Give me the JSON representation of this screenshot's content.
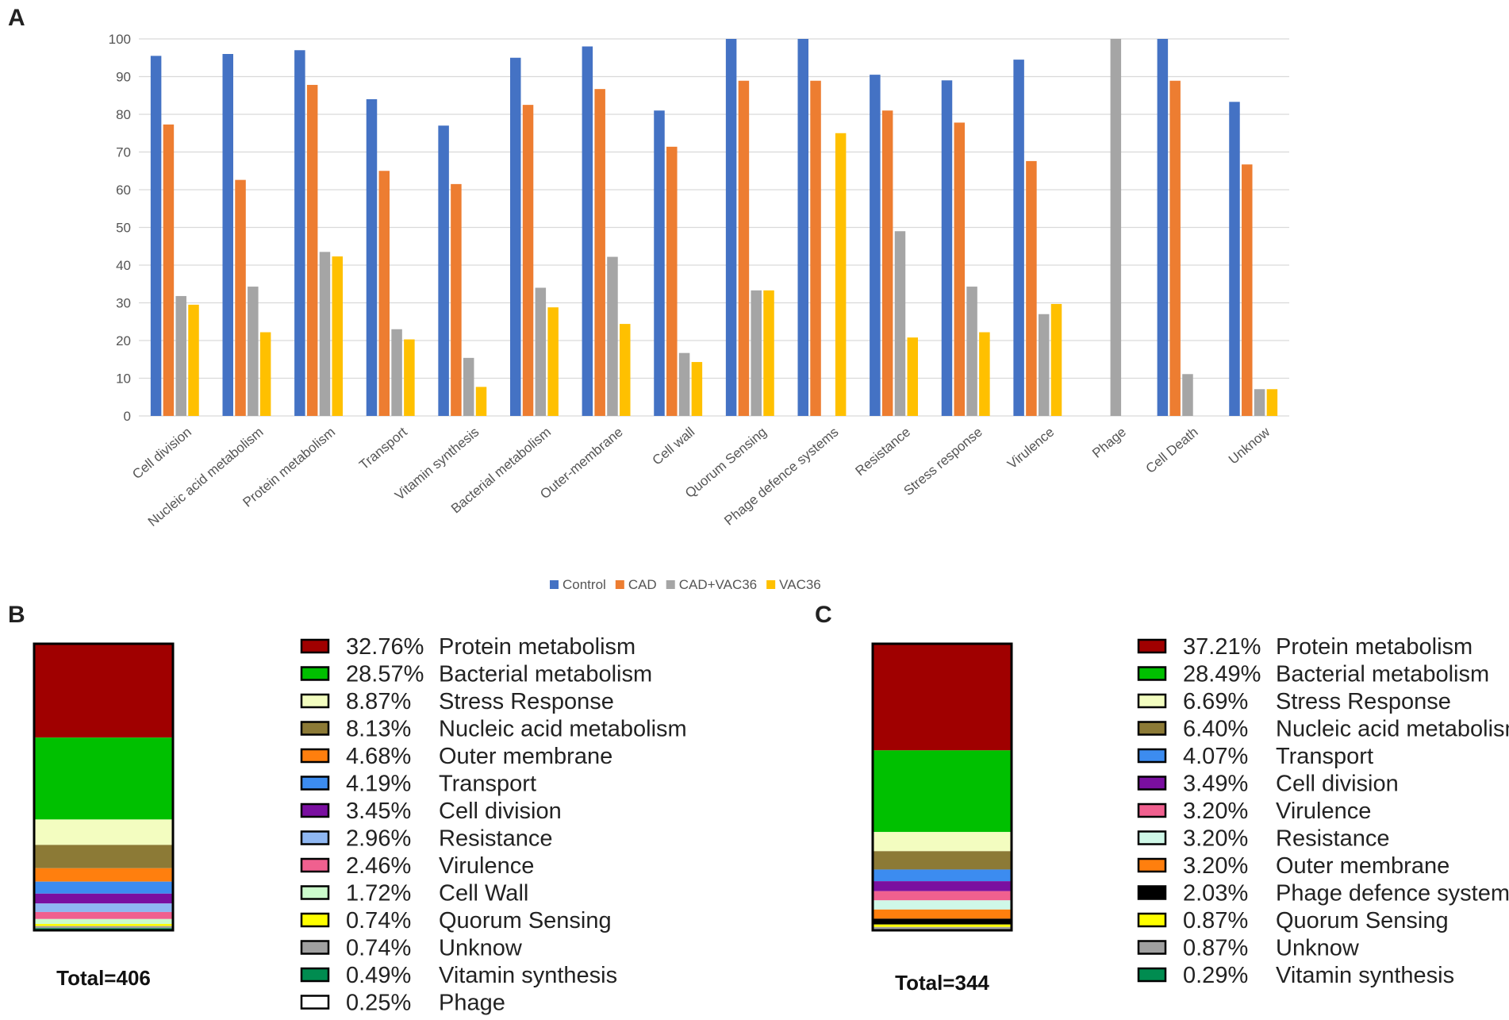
{
  "panels": {
    "a": "A",
    "b": "B",
    "c": "C"
  },
  "colors": {
    "Control": "#4472C4",
    "CAD": "#ED7D31",
    "CAD+VAC36": "#A5A5A5",
    "VAC36": "#FFC000"
  },
  "chart_data": [
    {
      "type": "bar",
      "title": "",
      "xlabel": "",
      "ylabel": "",
      "ylim": [
        0,
        100
      ],
      "yticks": [
        "0",
        "10",
        "20",
        "30",
        "40",
        "50",
        "60",
        "70",
        "80",
        "90",
        "100"
      ],
      "grid": true,
      "legend_position": "bottom-center",
      "categories": [
        "Cell division",
        "Nucleic acid metabolism",
        "Protein metabolism",
        "Transport",
        "Vitamin synthesis",
        "Bacterial metabolism",
        "Outer-membrane",
        "Cell wall",
        "Quorum Sensing",
        "Phage defence systems",
        "Resistance",
        "Stress response",
        "Virulence",
        "Phage",
        "Cell Death",
        "Unknow"
      ],
      "series": [
        {
          "name": "Control",
          "values": [
            95.5,
            96,
            97,
            84,
            77,
            95,
            98,
            81,
            100,
            100,
            90.5,
            89,
            94.5,
            0,
            100,
            83.3
          ]
        },
        {
          "name": "CAD",
          "values": [
            77.3,
            62.6,
            87.8,
            65,
            61.5,
            82.5,
            86.7,
            71.4,
            88.9,
            88.9,
            81,
            77.8,
            67.6,
            0,
            88.9,
            66.7
          ]
        },
        {
          "name": "CAD+VAC36",
          "values": [
            31.8,
            34.3,
            43.5,
            23,
            15.4,
            34,
            42.2,
            16.7,
            33.3,
            0,
            49,
            34.3,
            27,
            100,
            11.1,
            7.1
          ]
        },
        {
          "name": "VAC36",
          "values": [
            29.5,
            22.2,
            42.3,
            20.3,
            7.7,
            28.8,
            24.4,
            14.3,
            33.3,
            75,
            20.8,
            22.2,
            29.7,
            0,
            0,
            7.1
          ]
        }
      ]
    },
    {
      "type": "bar",
      "subtype": "stacked-100",
      "total_label": "Total=406",
      "segments": [
        {
          "pct": 32.76,
          "label": "32.76%",
          "name": "Protein metabolism",
          "color": "#A00000"
        },
        {
          "pct": 28.57,
          "label": "28.57%",
          "name": "Bacterial metabolism",
          "color": "#00C000"
        },
        {
          "pct": 8.87,
          "label": "8.87%",
          "name": "Stress Response",
          "color": "#F3FDC0"
        },
        {
          "pct": 8.13,
          "label": "8.13%",
          "name": "Nucleic acid metabolism",
          "color": "#8C7A36"
        },
        {
          "pct": 4.68,
          "label": "4.68%",
          "name": "Outer membrane",
          "color": "#FF7F0E"
        },
        {
          "pct": 4.19,
          "label": "4.19%",
          "name": "Transport",
          "color": "#3C8CF0"
        },
        {
          "pct": 3.45,
          "label": "3.45%",
          "name": "Cell division",
          "color": "#7A0FA0"
        },
        {
          "pct": 2.96,
          "label": "2.96%",
          "name": "Resistance",
          "color": "#8FB7F2"
        },
        {
          "pct": 2.46,
          "label": "2.46%",
          "name": "Virulence",
          "color": "#F0608F"
        },
        {
          "pct": 1.72,
          "label": "1.72%",
          "name": "Cell Wall",
          "color": "#CCFBCC"
        },
        {
          "pct": 0.74,
          "label": "0.74%",
          "name": "Quorum Sensing",
          "color": "#FFFF00"
        },
        {
          "pct": 0.74,
          "label": "0.74%",
          "name": "Unknow",
          "color": "#A0A0A0"
        },
        {
          "pct": 0.49,
          "label": "0.49%",
          "name": "Vitamin synthesis",
          "color": "#008C50"
        },
        {
          "pct": 0.25,
          "label": "0.25%",
          "name": "Phage",
          "color": "#FFFFFF"
        }
      ]
    },
    {
      "type": "bar",
      "subtype": "stacked-100",
      "total_label": "Total=344",
      "segments": [
        {
          "pct": 37.21,
          "label": "37.21%",
          "name": "Protein metabolism",
          "color": "#A00000"
        },
        {
          "pct": 28.49,
          "label": "28.49%",
          "name": "Bacterial metabolism",
          "color": "#00C000"
        },
        {
          "pct": 6.69,
          "label": "6.69%",
          "name": "Stress Response",
          "color": "#F3FDC0"
        },
        {
          "pct": 6.4,
          "label": "6.40%",
          "name": "Nucleic acid metabolism",
          "color": "#8C7A36"
        },
        {
          "pct": 4.07,
          "label": "4.07%",
          "name": "Transport",
          "color": "#3C8CF0"
        },
        {
          "pct": 3.49,
          "label": "3.49%",
          "name": "Cell division",
          "color": "#7A0FA0"
        },
        {
          "pct": 3.2,
          "label": "3.20%",
          "name": "Virulence",
          "color": "#F0608F"
        },
        {
          "pct": 3.2,
          "label": "3.20%",
          "name": "Resistance",
          "color": "#CFF8E8"
        },
        {
          "pct": 3.2,
          "label": "3.20%",
          "name": "Outer membrane",
          "color": "#FF7F0E"
        },
        {
          "pct": 2.03,
          "label": "2.03%",
          "name": "Phage defence system",
          "color": "#000000"
        },
        {
          "pct": 0.87,
          "label": "0.87%",
          "name": "Quorum Sensing",
          "color": "#FFFF00"
        },
        {
          "pct": 0.87,
          "label": "0.87%",
          "name": "Unknow",
          "color": "#A0A0A0"
        },
        {
          "pct": 0.29,
          "label": "0.29%",
          "name": "Vitamin synthesis",
          "color": "#008C50"
        }
      ]
    }
  ]
}
